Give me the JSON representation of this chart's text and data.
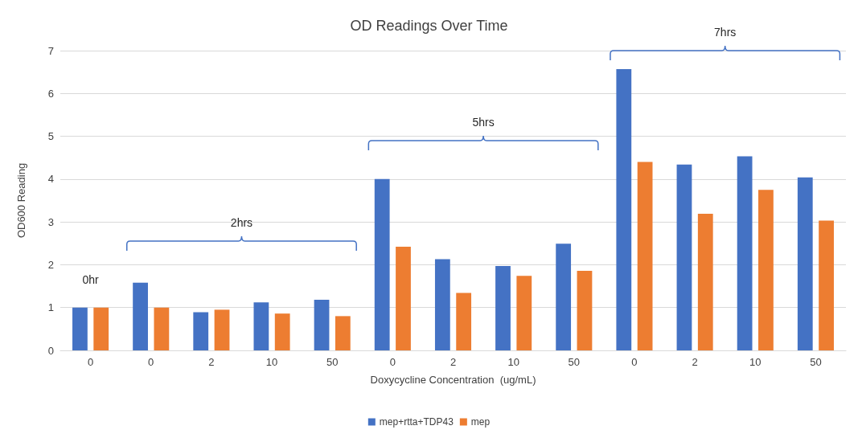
{
  "chart_data": {
    "type": "bar",
    "title": "OD Readings Over Time",
    "xlabel": "Doxycycline Concentration  (ug/mL)",
    "ylabel": "OD600 Reading",
    "categories": [
      "0",
      "0",
      "2",
      "10",
      "50",
      "0",
      "2",
      "10",
      "50",
      "0",
      "2",
      "10",
      "50"
    ],
    "series": [
      {
        "name": "mep+rtta+TDP43",
        "color": "#4472c4",
        "values": [
          1.0,
          1.58,
          0.89,
          1.12,
          1.18,
          4.0,
          2.13,
          1.97,
          2.49,
          6.57,
          4.34,
          4.53,
          4.04
        ]
      },
      {
        "name": "mep",
        "color": "#ed7d31",
        "values": [
          1.0,
          1.0,
          0.95,
          0.86,
          0.8,
          2.42,
          1.34,
          1.74,
          1.86,
          4.4,
          3.19,
          3.75,
          3.03
        ]
      }
    ],
    "ylim": [
      0,
      7
    ],
    "yticks": [
      0,
      1,
      2,
      3,
      4,
      5,
      6,
      7
    ],
    "grid": "y",
    "legend": "bottom",
    "annotations": [
      "0hr",
      "2hrs",
      "5hrs",
      "7hrs"
    ]
  }
}
